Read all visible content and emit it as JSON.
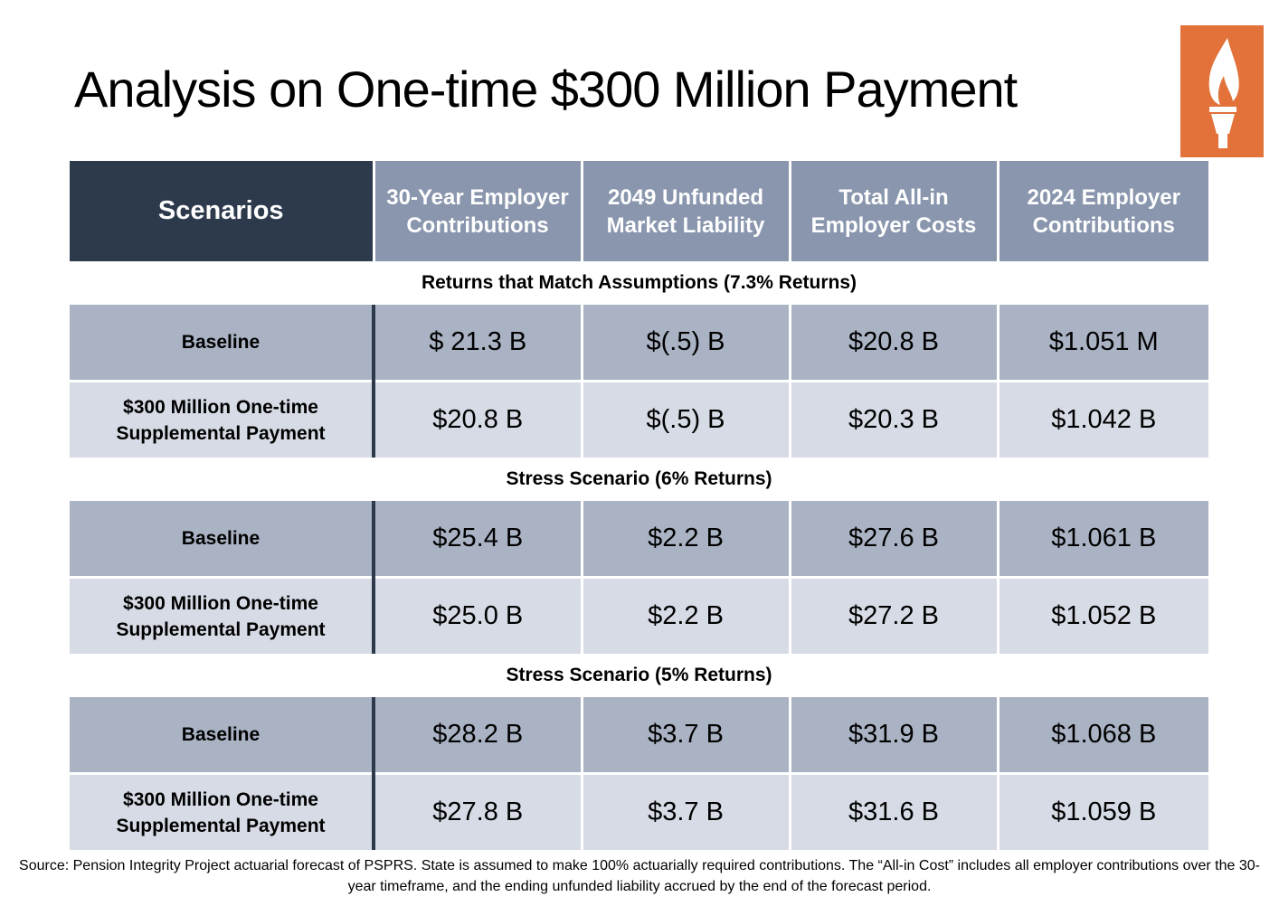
{
  "title": "Analysis on One-time $300 Million Payment",
  "logo": {
    "icon": "torch-icon",
    "background": "#e2713a"
  },
  "table": {
    "headers": [
      "Scenarios",
      "30-Year Employer Contributions",
      "2049 Unfunded Market Liability",
      "Total All-in Employer Costs",
      "2024 Employer Contributions"
    ],
    "sections": [
      {
        "title": "Returns that Match Assumptions (7.3% Returns)",
        "rows": [
          {
            "label": "Baseline",
            "values": [
              "$ 21.3 B",
              "$(.5) B",
              "$20.8 B",
              "$1.051 M"
            ]
          },
          {
            "label": "$300 Million One-time Supplemental Payment",
            "values": [
              "$20.8 B",
              "$(.5) B",
              "$20.3 B",
              "$1.042 B"
            ]
          }
        ]
      },
      {
        "title": "Stress Scenario (6% Returns)",
        "rows": [
          {
            "label": "Baseline",
            "values": [
              "$25.4 B",
              "$2.2 B",
              "$27.6 B",
              "$1.061 B"
            ]
          },
          {
            "label": "$300 Million One-time Supplemental Payment",
            "values": [
              "$25.0 B",
              "$2.2 B",
              "$27.2 B",
              "$1.052 B"
            ]
          }
        ]
      },
      {
        "title": "Stress Scenario (5% Returns)",
        "rows": [
          {
            "label": "Baseline",
            "values": [
              "$28.2 B",
              "$3.7 B",
              "$31.9 B",
              "$1.068 B"
            ]
          },
          {
            "label": "$300 Million One-time Supplemental Payment",
            "values": [
              "$27.8 B",
              "$3.7 B",
              "$31.6 B",
              "$1.059 B"
            ]
          }
        ]
      }
    ]
  },
  "source": "Source: Pension Integrity Project actuarial forecast of PSPRS. State is assumed to make 100% actuarially required contributions. The “All-in Cost” includes all employer contributions over the 30-year timeframe, and the ending unfunded liability accrued by the end of the forecast period."
}
